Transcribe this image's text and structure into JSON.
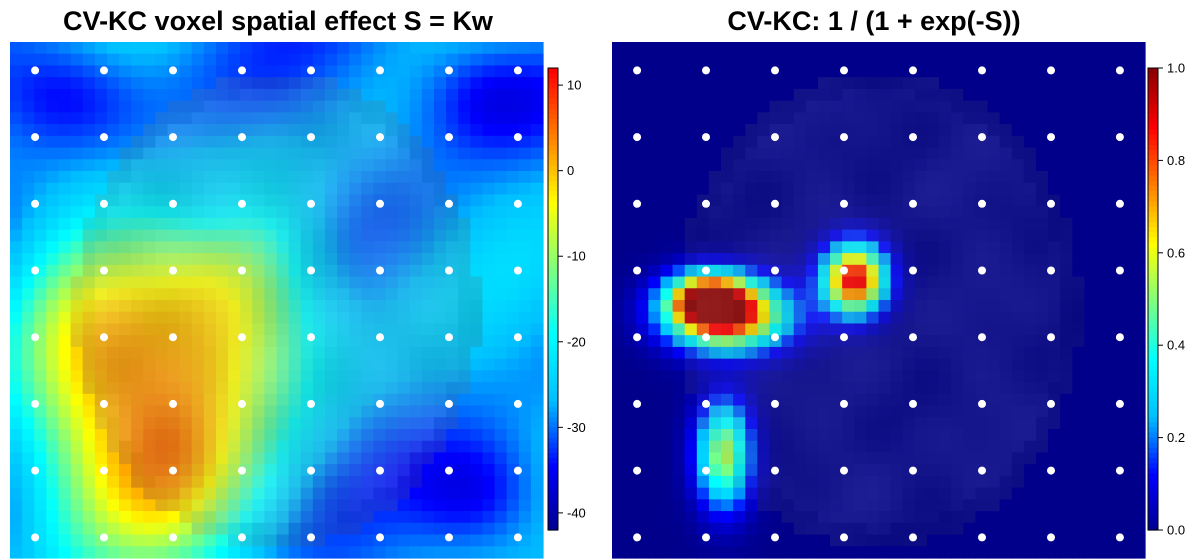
{
  "chart_data": [
    {
      "type": "heatmap",
      "title": "CV-KC voxel spatial effect S = Kw",
      "colorbar": {
        "ticks": [
          10,
          0,
          -10,
          -20,
          -30,
          -40
        ],
        "range": [
          -42,
          12
        ],
        "colors": [
          "#00008b",
          "#0000ff",
          "#00bfff",
          "#00ffff",
          "#7fff7f",
          "#ffff00",
          "#ff7f00",
          "#ff0000"
        ]
      },
      "knots": {
        "rows": 8,
        "cols": 8,
        "color": "#ffffff"
      },
      "overlay_alpha": 0.55
    },
    {
      "type": "heatmap",
      "title": "CV-KC: 1 / (1 + exp(-S))",
      "colorbar": {
        "ticks": [
          1.0,
          0.8,
          0.6,
          0.4,
          0.2,
          0.0
        ],
        "tick_labels": [
          "1.0",
          "0.8",
          "0.6",
          "0.4",
          "0.2",
          "0.0"
        ],
        "range": [
          0,
          1
        ],
        "colors": [
          "#00008b",
          "#0000ff",
          "#00bfff",
          "#00ffff",
          "#7fff7f",
          "#ffff00",
          "#ff7f00",
          "#ff0000",
          "#8b0000"
        ]
      },
      "knots": {
        "rows": 8,
        "cols": 8,
        "color": "#ffffff"
      },
      "overlay_alpha": 0.6
    }
  ]
}
